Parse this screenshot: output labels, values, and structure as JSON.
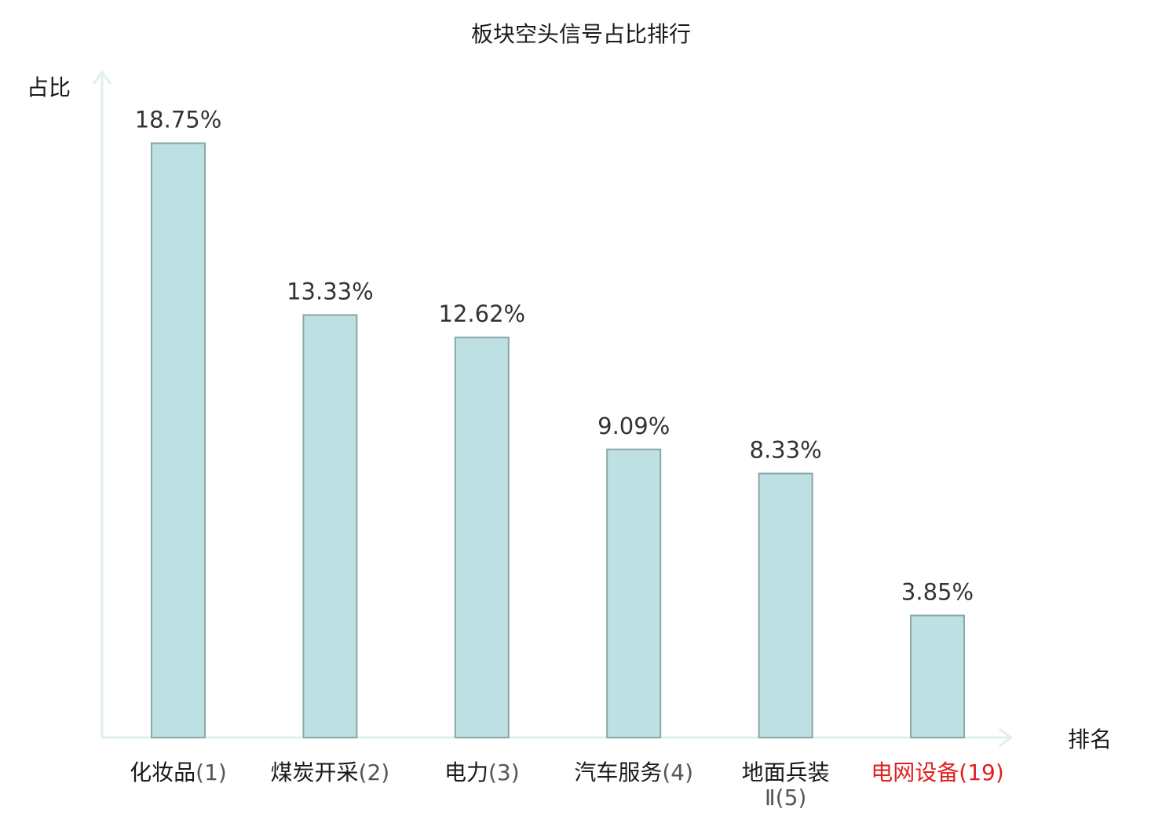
{
  "chart_data": {
    "type": "bar",
    "title": "板块空头信号占比排行",
    "ylabel": "占比",
    "xlabel": "排名",
    "ylim": [
      0,
      21.5
    ],
    "grid": false,
    "legend": "none",
    "bar_color": "#bde1e3",
    "bar_edge_color": "#8aa7a9",
    "axis_color": "#dff0ee",
    "highlight_color": "#e02020",
    "categories": [
      {
        "name": "化妆品",
        "rank": "(1)",
        "highlight": false
      },
      {
        "name": "煤炭开采",
        "rank": "(2)",
        "highlight": false
      },
      {
        "name": "电力",
        "rank": "(3)",
        "highlight": false
      },
      {
        "name": "汽车服务",
        "rank": "(4)",
        "highlight": false
      },
      {
        "name": "地面兵装",
        "name_line2": "Ⅱ",
        "rank": "(5)",
        "highlight": false
      },
      {
        "name": "电网设备",
        "rank": "(19)",
        "highlight": true
      }
    ],
    "values": [
      18.75,
      13.33,
      12.62,
      9.09,
      8.33,
      3.85
    ],
    "value_labels": [
      "18.75%",
      "13.33%",
      "12.62%",
      "9.09%",
      "8.33%",
      "3.85%"
    ]
  }
}
